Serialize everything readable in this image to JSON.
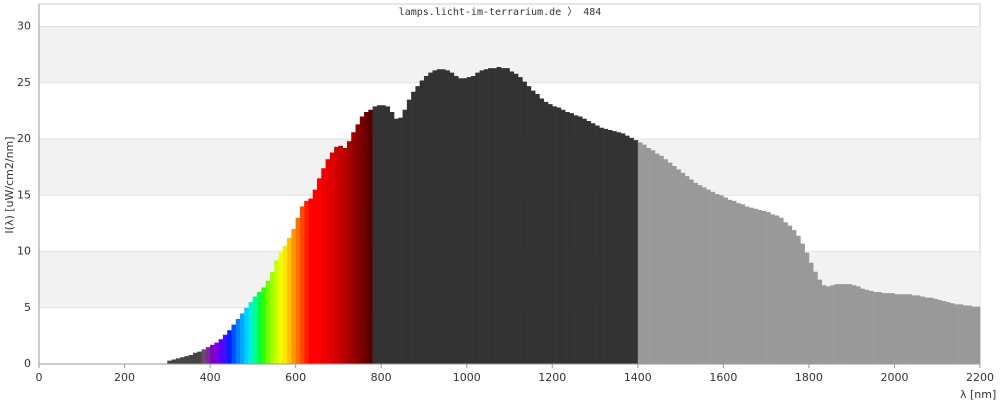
{
  "chart_data": {
    "type": "area",
    "title": "lamps.licht-im-terrarium.de 〉 484",
    "y_label": "I(λ)  [uW/cm2/nm]",
    "x_label": "λ [nm]",
    "xlim": [
      0,
      2200
    ],
    "xticks": [
      0,
      200,
      400,
      600,
      800,
      1000,
      1200,
      1400,
      1600,
      1800,
      2000,
      2200
    ],
    "ylim": [
      0,
      32
    ],
    "yticks": [
      0,
      5,
      10,
      15,
      20,
      25,
      30
    ],
    "grid": true,
    "stripe_color": "#f2f2f2",
    "step": 10,
    "series": [
      {
        "color": "#444444",
        "x": [
          300,
          310,
          320,
          330,
          340,
          350,
          360,
          370
        ],
        "values": [
          0.3,
          0.4,
          0.5,
          0.6,
          0.7,
          0.8,
          1.0,
          1.1
        ]
      },
      {
        "colors": [
          "#6a4a6a",
          "#7a2a9a",
          "#8000c0",
          "#7a00e0",
          "#5a00ff",
          "#3a10ff",
          "#0020ff",
          "#0050ff",
          "#0080ff",
          "#00a8ff",
          "#00d0ff",
          "#00f0e0",
          "#00ff90",
          "#00ff40",
          "#30ff00",
          "#70ff00",
          "#a0ff00",
          "#c8ff00",
          "#f0ff00",
          "#ffe800",
          "#ffc000",
          "#ff9800",
          "#ff7000",
          "#ff4800",
          "#ff2000",
          "#ff0000",
          "#ff0000",
          "#ff0000",
          "#f00000",
          "#e80000",
          "#e00000",
          "#d00000",
          "#c80000",
          "#b80000",
          "#a80000",
          "#980000",
          "#880000",
          "#780000",
          "#680000",
          "#580000"
        ],
        "x": [
          380,
          390,
          400,
          410,
          420,
          430,
          440,
          450,
          460,
          470,
          480,
          490,
          500,
          510,
          520,
          530,
          540,
          550,
          560,
          570,
          580,
          590,
          600,
          610,
          620,
          630,
          640,
          650,
          660,
          670,
          680,
          690,
          700,
          710,
          720,
          730,
          740,
          750,
          760,
          770
        ],
        "values": [
          1.3,
          1.5,
          1.7,
          1.9,
          2.2,
          2.6,
          3.0,
          3.5,
          4.0,
          4.5,
          5.0,
          5.5,
          6.0,
          6.4,
          6.8,
          7.4,
          8.2,
          9.2,
          9.9,
          10.5,
          11.2,
          12.0,
          13.0,
          14.0,
          14.5,
          14.7,
          15.5,
          16.5,
          17.4,
          18.2,
          18.8,
          19.3,
          19.4,
          19.2,
          19.8,
          20.6,
          21.3,
          22.0,
          22.4,
          22.6
        ]
      },
      {
        "color": "#333333",
        "x": [
          780,
          790,
          800,
          810,
          820,
          830,
          840,
          850,
          860,
          870,
          880,
          890,
          900,
          910,
          920,
          930,
          940,
          950,
          960,
          970,
          980,
          990,
          1000,
          1010,
          1020,
          1030,
          1040,
          1050,
          1060,
          1070,
          1080,
          1090,
          1100,
          1110,
          1120,
          1130,
          1140,
          1150,
          1160,
          1170,
          1180,
          1190,
          1200,
          1210,
          1220,
          1230,
          1240,
          1250,
          1260,
          1270,
          1280,
          1290,
          1300,
          1310,
          1320,
          1330,
          1340,
          1350,
          1360,
          1370,
          1380,
          1390
        ],
        "values": [
          22.9,
          23.0,
          23.0,
          22.9,
          22.4,
          21.8,
          21.9,
          22.6,
          23.5,
          24.2,
          24.7,
          25.2,
          25.6,
          25.9,
          26.1,
          26.2,
          26.2,
          26.1,
          25.9,
          25.6,
          25.4,
          25.4,
          25.5,
          25.6,
          25.9,
          26.1,
          26.2,
          26.3,
          26.3,
          26.4,
          26.3,
          26.3,
          26.0,
          25.8,
          25.5,
          25.1,
          24.7,
          24.3,
          24.0,
          23.6,
          23.3,
          23.1,
          22.9,
          22.8,
          22.6,
          22.4,
          22.3,
          22.1,
          22.0,
          21.8,
          21.6,
          21.4,
          21.2,
          21.0,
          20.9,
          20.8,
          20.7,
          20.6,
          20.5,
          20.3,
          20.1,
          19.9
        ]
      },
      {
        "color": "#999999",
        "x": [
          1400,
          1410,
          1420,
          1430,
          1440,
          1450,
          1460,
          1470,
          1480,
          1490,
          1500,
          1510,
          1520,
          1530,
          1540,
          1550,
          1560,
          1570,
          1580,
          1590,
          1600,
          1610,
          1620,
          1630,
          1640,
          1650,
          1660,
          1670,
          1680,
          1690,
          1700,
          1710,
          1720,
          1730,
          1740,
          1750,
          1760,
          1770,
          1780,
          1790,
          1800,
          1810,
          1820,
          1830,
          1840,
          1850,
          1860,
          1870,
          1880,
          1890,
          1900,
          1910,
          1920,
          1930,
          1940,
          1950,
          1960,
          1970,
          1980,
          1990,
          2000,
          2010,
          2020,
          2030,
          2040,
          2050,
          2060,
          2070,
          2080,
          2090,
          2100,
          2110,
          2120,
          2130,
          2140,
          2150,
          2160,
          2170,
          2180,
          2190
        ],
        "values": [
          19.7,
          19.5,
          19.2,
          19.0,
          18.7,
          18.5,
          18.2,
          17.9,
          17.6,
          17.3,
          17.0,
          16.7,
          16.4,
          16.1,
          15.9,
          15.7,
          15.5,
          15.3,
          15.1,
          15.0,
          14.8,
          14.6,
          14.5,
          14.3,
          14.2,
          14.0,
          13.9,
          13.8,
          13.7,
          13.6,
          13.5,
          13.3,
          13.2,
          13.0,
          12.6,
          12.3,
          11.9,
          11.4,
          10.7,
          9.9,
          9.0,
          8.2,
          7.5,
          7.0,
          6.9,
          7.0,
          7.1,
          7.1,
          7.1,
          7.1,
          7.0,
          6.9,
          6.7,
          6.6,
          6.5,
          6.4,
          6.4,
          6.3,
          6.3,
          6.3,
          6.2,
          6.2,
          6.2,
          6.2,
          6.1,
          6.1,
          6.0,
          5.9,
          5.9,
          5.8,
          5.7,
          5.6,
          5.5,
          5.4,
          5.3,
          5.3,
          5.2,
          5.2,
          5.1,
          5.1
        ]
      }
    ]
  }
}
